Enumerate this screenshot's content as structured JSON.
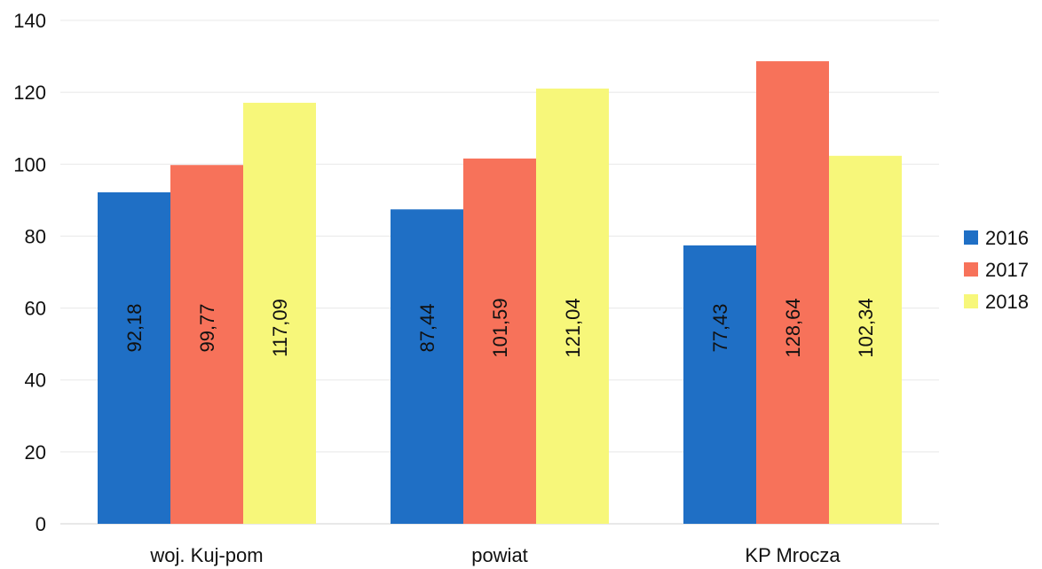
{
  "chart_data": {
    "type": "bar",
    "categories": [
      "woj. Kuj-pom",
      "powiat",
      "KP Mrocza"
    ],
    "series": [
      {
        "name": "2016",
        "values": [
          92.18,
          87.44,
          77.43
        ],
        "labels": [
          "92,18",
          "87,44",
          "77,43"
        ],
        "color": "#1f6fc5"
      },
      {
        "name": "2017",
        "values": [
          99.77,
          101.59,
          128.64
        ],
        "labels": [
          "99,77",
          "101,59",
          "128,64"
        ],
        "color": "#f7725a"
      },
      {
        "name": "2018",
        "values": [
          117.09,
          121.04,
          102.34
        ],
        "labels": [
          "117,09",
          "121,04",
          "102,34"
        ],
        "color": "#f7f77a"
      }
    ],
    "y_ticks": [
      "0",
      "20",
      "40",
      "60",
      "80",
      "100",
      "120",
      "140"
    ],
    "ylim": [
      0,
      140
    ],
    "grid": true,
    "legend_position": "right"
  }
}
